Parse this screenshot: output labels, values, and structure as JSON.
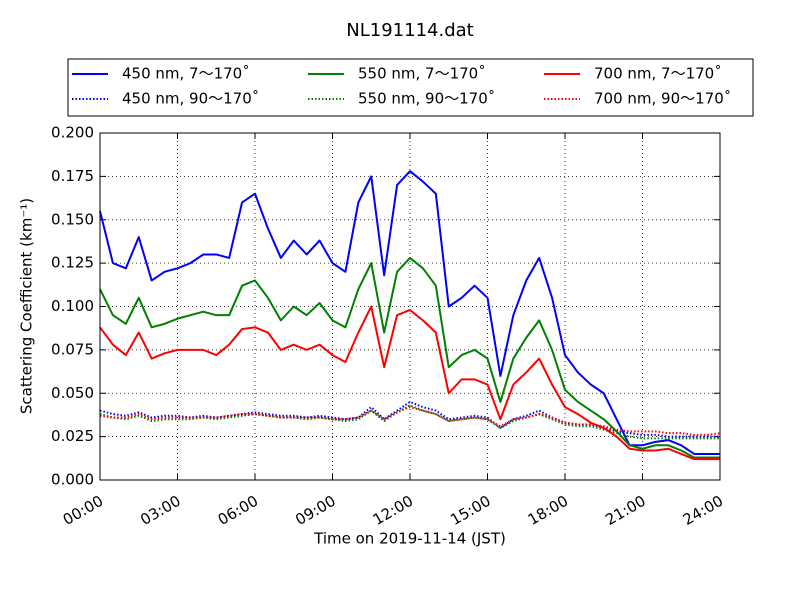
{
  "chart_data": {
    "type": "line",
    "title": "NL191114.dat",
    "xlabel": "Time on 2019-11-14 (JST)",
    "ylabel": "Scattering Coefficient (km⁻¹)",
    "x": [
      0,
      0.5,
      1,
      1.5,
      2,
      2.5,
      3,
      3.5,
      4,
      4.5,
      5,
      5.5,
      6,
      6.5,
      7,
      7.5,
      8,
      8.5,
      9,
      9.5,
      10,
      10.5,
      11,
      11.5,
      12,
      12.5,
      13,
      13.5,
      14,
      14.5,
      15,
      15.5,
      16,
      16.5,
      17,
      17.5,
      18,
      18.5,
      19,
      19.5,
      20,
      20.5,
      21,
      21.5,
      22,
      22.5,
      23,
      23.5,
      24
    ],
    "xlim": [
      0,
      24
    ],
    "xticks": [
      {
        "value": 0,
        "label": "00:00"
      },
      {
        "value": 3,
        "label": "03:00"
      },
      {
        "value": 6,
        "label": "06:00"
      },
      {
        "value": 9,
        "label": "09:00"
      },
      {
        "value": 12,
        "label": "12:00"
      },
      {
        "value": 15,
        "label": "15:00"
      },
      {
        "value": 18,
        "label": "18:00"
      },
      {
        "value": 21,
        "label": "21:00"
      },
      {
        "value": 24,
        "label": "24:00"
      }
    ],
    "ylim": [
      0,
      0.2
    ],
    "yticks": [
      {
        "value": 0,
        "label": "0.000"
      },
      {
        "value": 0.025,
        "label": "0.025"
      },
      {
        "value": 0.05,
        "label": "0.050"
      },
      {
        "value": 0.075,
        "label": "0.075"
      },
      {
        "value": 0.1,
        "label": "0.100"
      },
      {
        "value": 0.125,
        "label": "0.125"
      },
      {
        "value": 0.15,
        "label": "0.150"
      },
      {
        "value": 0.175,
        "label": "0.175"
      },
      {
        "value": 0.2,
        "label": "0.200"
      }
    ],
    "grid": true,
    "legend": "top",
    "series": [
      {
        "name": "450 nm, 7～170˚",
        "color": "#0000ff",
        "linestyle": "solid",
        "values": [
          0.155,
          0.125,
          0.122,
          0.14,
          0.115,
          0.12,
          0.122,
          0.125,
          0.13,
          0.13,
          0.128,
          0.16,
          0.165,
          0.145,
          0.128,
          0.138,
          0.13,
          0.138,
          0.125,
          0.12,
          0.16,
          0.175,
          0.118,
          0.17,
          0.178,
          0.172,
          0.165,
          0.1,
          0.105,
          0.112,
          0.105,
          0.06,
          0.095,
          0.115,
          0.128,
          0.105,
          0.072,
          0.062,
          0.055,
          0.05,
          0.035,
          0.02,
          0.02,
          0.022,
          0.023,
          0.02,
          0.015,
          0.015,
          0.015
        ]
      },
      {
        "name": "450 nm, 90～170˚",
        "color": "#0000ff",
        "linestyle": "dotted",
        "values": [
          0.04,
          0.038,
          0.037,
          0.039,
          0.036,
          0.037,
          0.037,
          0.036,
          0.037,
          0.036,
          0.037,
          0.038,
          0.039,
          0.038,
          0.037,
          0.037,
          0.036,
          0.037,
          0.036,
          0.035,
          0.036,
          0.042,
          0.035,
          0.04,
          0.045,
          0.042,
          0.04,
          0.035,
          0.036,
          0.037,
          0.036,
          0.03,
          0.035,
          0.037,
          0.04,
          0.036,
          0.033,
          0.032,
          0.032,
          0.03,
          0.028,
          0.027,
          0.026,
          0.026,
          0.025,
          0.025,
          0.025,
          0.025,
          0.025
        ]
      },
      {
        "name": "550 nm, 7～170˚",
        "color": "#008000",
        "linestyle": "solid",
        "values": [
          0.11,
          0.095,
          0.09,
          0.105,
          0.088,
          0.09,
          0.093,
          0.095,
          0.097,
          0.095,
          0.095,
          0.112,
          0.115,
          0.105,
          0.092,
          0.1,
          0.095,
          0.102,
          0.092,
          0.088,
          0.11,
          0.125,
          0.085,
          0.12,
          0.128,
          0.122,
          0.112,
          0.065,
          0.072,
          0.075,
          0.07,
          0.045,
          0.07,
          0.082,
          0.092,
          0.075,
          0.052,
          0.045,
          0.04,
          0.035,
          0.028,
          0.02,
          0.018,
          0.02,
          0.02,
          0.017,
          0.013,
          0.013,
          0.013
        ]
      },
      {
        "name": "550 nm, 90～170˚",
        "color": "#008000",
        "linestyle": "dotted",
        "values": [
          0.038,
          0.036,
          0.035,
          0.037,
          0.034,
          0.035,
          0.035,
          0.035,
          0.036,
          0.035,
          0.036,
          0.037,
          0.038,
          0.037,
          0.036,
          0.036,
          0.035,
          0.036,
          0.035,
          0.034,
          0.035,
          0.04,
          0.034,
          0.039,
          0.043,
          0.04,
          0.038,
          0.034,
          0.035,
          0.036,
          0.035,
          0.03,
          0.034,
          0.036,
          0.038,
          0.035,
          0.032,
          0.031,
          0.031,
          0.029,
          0.027,
          0.025,
          0.024,
          0.024,
          0.024,
          0.024,
          0.024,
          0.024,
          0.024
        ]
      },
      {
        "name": "700 nm, 7～170˚",
        "color": "#ff0000",
        "linestyle": "solid",
        "values": [
          0.088,
          0.078,
          0.072,
          0.085,
          0.07,
          0.073,
          0.075,
          0.075,
          0.075,
          0.072,
          0.078,
          0.087,
          0.088,
          0.085,
          0.075,
          0.078,
          0.075,
          0.078,
          0.072,
          0.068,
          0.085,
          0.1,
          0.065,
          0.095,
          0.098,
          0.092,
          0.085,
          0.05,
          0.058,
          0.058,
          0.055,
          0.035,
          0.055,
          0.062,
          0.07,
          0.055,
          0.042,
          0.038,
          0.033,
          0.03,
          0.025,
          0.018,
          0.017,
          0.017,
          0.018,
          0.015,
          0.012,
          0.012,
          0.012
        ]
      },
      {
        "name": "700 nm, 90～170˚",
        "color": "#ff0000",
        "linestyle": "dotted",
        "values": [
          0.037,
          0.036,
          0.036,
          0.038,
          0.035,
          0.036,
          0.036,
          0.036,
          0.036,
          0.036,
          0.037,
          0.038,
          0.038,
          0.037,
          0.036,
          0.036,
          0.036,
          0.036,
          0.035,
          0.035,
          0.036,
          0.04,
          0.035,
          0.039,
          0.042,
          0.04,
          0.038,
          0.034,
          0.035,
          0.036,
          0.035,
          0.031,
          0.035,
          0.036,
          0.038,
          0.036,
          0.033,
          0.032,
          0.032,
          0.031,
          0.029,
          0.028,
          0.028,
          0.028,
          0.027,
          0.027,
          0.026,
          0.026,
          0.027
        ]
      }
    ]
  }
}
